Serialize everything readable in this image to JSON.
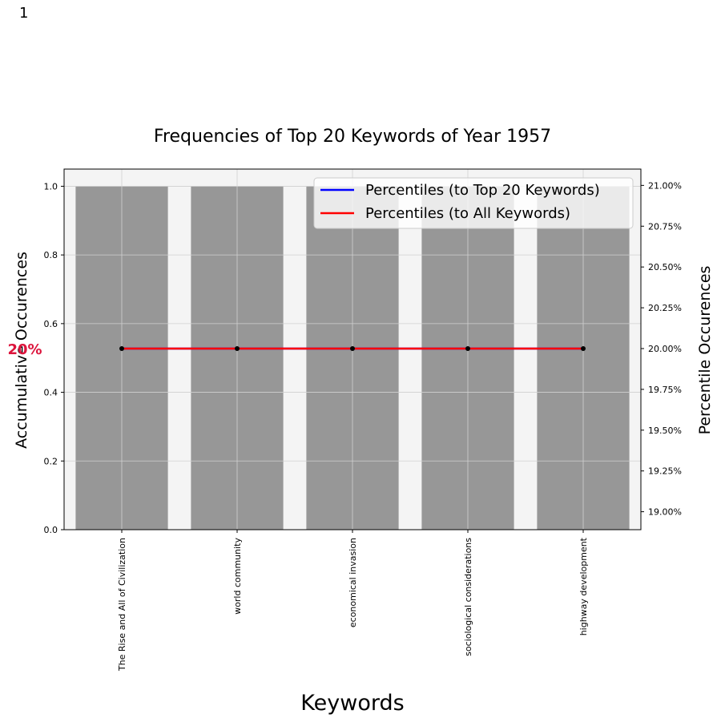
{
  "page_number": "1",
  "chart_data": {
    "type": "bar",
    "title": "Frequencies of Top 20 Keywords of Year 1957",
    "xlabel": "Keywords",
    "ylabel": "Accumulative Occurences",
    "y2label": "Percentile Occurences",
    "categories": [
      "The Rise and All of Civilization",
      "world community",
      "economical invasion",
      "sociological considerations",
      "highway development"
    ],
    "values": [
      1,
      1,
      1,
      1,
      1
    ],
    "ylim": [
      0,
      1.05
    ],
    "yticks": [
      "0.0",
      "0.2",
      "0.4",
      "0.6",
      "0.8",
      "1.0"
    ],
    "ytick_values": [
      0,
      0.2,
      0.4,
      0.6,
      0.8,
      1.0
    ],
    "y2lim": [
      18.89,
      21.1
    ],
    "y2ticks": [
      "19.00%",
      "19.25%",
      "19.50%",
      "19.75%",
      "20.00%",
      "20.25%",
      "20.50%",
      "20.75%",
      "21.00%"
    ],
    "y2tick_values": [
      19.0,
      19.25,
      19.5,
      19.75,
      20.0,
      20.25,
      20.5,
      20.75,
      21.0
    ],
    "series": [
      {
        "name": "Percentiles (to Top 20 Keywords)",
        "values": [
          20,
          20,
          20,
          20,
          20
        ]
      },
      {
        "name": "Percentiles (to All Keywords)",
        "values": [
          20,
          20,
          20,
          20,
          20
        ]
      }
    ],
    "annotation": "20%",
    "legend_position": "top-right",
    "grid": true,
    "colors": {
      "bar": "#979797",
      "plot_bg": "#f4f4f4",
      "series_top20": "#0000ff",
      "series_all": "#ff0000",
      "annotation": "#dc143c",
      "marker": "#000000"
    }
  }
}
